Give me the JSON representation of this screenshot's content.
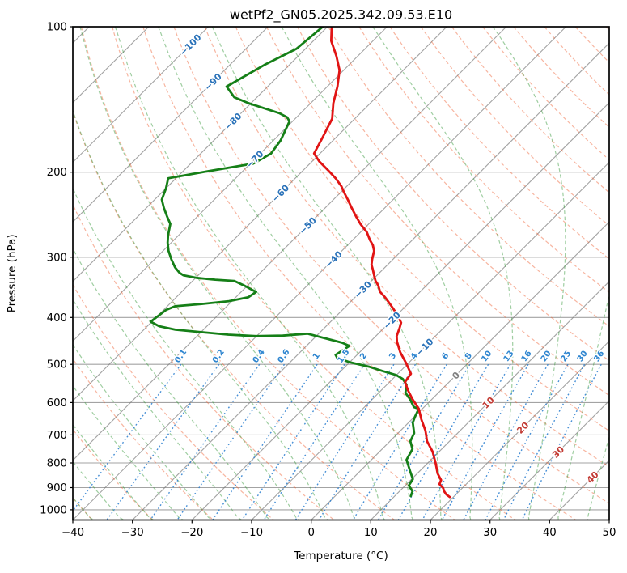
{
  "title": "wetPf2_GN05.2025.342.09.53.E10",
  "axes": {
    "x": {
      "label": "Temperature (°C)",
      "min": -40,
      "max": 50,
      "ticks": [
        {
          "v": -40,
          "label": "−40"
        },
        {
          "v": -30,
          "label": "−30"
        },
        {
          "v": -20,
          "label": "−20"
        },
        {
          "v": -10,
          "label": "−10"
        },
        {
          "v": 0,
          "label": "0"
        },
        {
          "v": 10,
          "label": "10"
        },
        {
          "v": 20,
          "label": "20"
        },
        {
          "v": 30,
          "label": "30"
        },
        {
          "v": 40,
          "label": "40"
        },
        {
          "v": 50,
          "label": "50"
        }
      ]
    },
    "y": {
      "label": "Pressure (hPa)",
      "ticks": [
        100,
        200,
        300,
        400,
        500,
        600,
        700,
        800,
        900,
        1000
      ]
    },
    "p": {
      "min": 100,
      "max": 1050
    }
  },
  "chart_data": {
    "type": "line",
    "chart_kind": "skew-t-log-p",
    "title": "wetPf2_GN05.2025.342.09.53.E10",
    "xlabel": "Temperature (°C)",
    "ylabel": "Pressure (hPa)",
    "xlim": [
      -40,
      50
    ],
    "plim": [
      100,
      1050
    ],
    "series": [
      {
        "name": "temperature",
        "color": "#e11414",
        "points": [
          [
            100,
            -79.3
          ],
          [
            107,
            -77.0
          ],
          [
            115,
            -73.6
          ],
          [
            123,
            -70.7
          ],
          [
            133,
            -68.3
          ],
          [
            144,
            -66.2
          ],
          [
            155,
            -63.8
          ],
          [
            170,
            -62.2
          ],
          [
            183,
            -61.0
          ],
          [
            190,
            -58.8
          ],
          [
            198,
            -55.9
          ],
          [
            206,
            -53.2
          ],
          [
            214,
            -50.9
          ],
          [
            220,
            -49.5
          ],
          [
            228,
            -47.6
          ],
          [
            237,
            -45.6
          ],
          [
            247,
            -43.4
          ],
          [
            256,
            -41.4
          ],
          [
            266,
            -39.0
          ],
          [
            277,
            -37.0
          ],
          [
            283,
            -35.8
          ],
          [
            291,
            -34.6
          ],
          [
            303,
            -33.5
          ],
          [
            311,
            -32.7
          ],
          [
            318,
            -31.7
          ],
          [
            327,
            -30.5
          ],
          [
            336,
            -29.3
          ],
          [
            344,
            -28.0
          ],
          [
            354,
            -26.7
          ],
          [
            363,
            -25.0
          ],
          [
            372,
            -23.5
          ],
          [
            382,
            -21.9
          ],
          [
            392,
            -20.4
          ],
          [
            400,
            -19.3
          ],
          [
            410,
            -18.0
          ],
          [
            420,
            -17.4
          ],
          [
            437,
            -16.5
          ],
          [
            449,
            -15.5
          ],
          [
            472,
            -13.2
          ],
          [
            497,
            -10.4
          ],
          [
            523,
            -7.8
          ],
          [
            544,
            -7.4
          ],
          [
            566,
            -5.5
          ],
          [
            589,
            -3.4
          ],
          [
            618,
            -0.6
          ],
          [
            650,
            1.6
          ],
          [
            686,
            4.2
          ],
          [
            721,
            6.2
          ],
          [
            758,
            8.9
          ],
          [
            800,
            11.3
          ],
          [
            841,
            13.4
          ],
          [
            868,
            15.1
          ],
          [
            885,
            15.5
          ],
          [
            902,
            16.8
          ],
          [
            916,
            17.5
          ],
          [
            930,
            18.4
          ],
          [
            941,
            19.4
          ]
        ]
      },
      {
        "name": "dewpoint",
        "color": "#157f17",
        "points": [
          [
            100,
            -80.8
          ],
          [
            111,
            -81.5
          ],
          [
            120,
            -84.2
          ],
          [
            128,
            -85.9
          ],
          [
            133,
            -86.9
          ],
          [
            140,
            -83.8
          ],
          [
            144,
            -80.4
          ],
          [
            148,
            -76.5
          ],
          [
            151,
            -73.6
          ],
          [
            154,
            -71.6
          ],
          [
            157,
            -70.5
          ],
          [
            163,
            -69.8
          ],
          [
            172,
            -68.8
          ],
          [
            183,
            -68.2
          ],
          [
            192,
            -69.5
          ],
          [
            200,
            -76.6
          ],
          [
            206,
            -81.3
          ],
          [
            216,
            -80.0
          ],
          [
            228,
            -78.8
          ],
          [
            237,
            -77.1
          ],
          [
            247,
            -75.1
          ],
          [
            256,
            -73.3
          ],
          [
            270,
            -71.8
          ],
          [
            280,
            -70.6
          ],
          [
            291,
            -69.1
          ],
          [
            303,
            -67.2
          ],
          [
            315,
            -65.2
          ],
          [
            323,
            -63.6
          ],
          [
            327,
            -62.5
          ],
          [
            331,
            -59.9
          ],
          [
            334,
            -56.4
          ],
          [
            336,
            -53.0
          ],
          [
            344,
            -50.4
          ],
          [
            351,
            -48.4
          ],
          [
            354,
            -47.5
          ],
          [
            363,
            -47.9
          ],
          [
            370,
            -50.5
          ],
          [
            375,
            -54.6
          ],
          [
            379,
            -58.7
          ],
          [
            386,
            -59.6
          ],
          [
            408,
            -60.2
          ],
          [
            417,
            -58.0
          ],
          [
            424,
            -54.7
          ],
          [
            429,
            -49.8
          ],
          [
            434,
            -45.0
          ],
          [
            437,
            -40.1
          ],
          [
            436,
            -35.7
          ],
          [
            432,
            -31.9
          ],
          [
            451,
            -24.6
          ],
          [
            458,
            -22.8
          ],
          [
            478,
            -23.6
          ],
          [
            485,
            -22.8
          ],
          [
            495,
            -20.0
          ],
          [
            506,
            -15.9
          ],
          [
            516,
            -13.1
          ],
          [
            526,
            -10.1
          ],
          [
            536,
            -8.3
          ],
          [
            551,
            -6.7
          ],
          [
            573,
            -5.5
          ],
          [
            589,
            -3.8
          ],
          [
            613,
            -1.7
          ],
          [
            618,
            -0.6
          ],
          [
            642,
            0.1
          ],
          [
            660,
            0.7
          ],
          [
            694,
            2.7
          ],
          [
            721,
            3.4
          ],
          [
            749,
            5.1
          ],
          [
            788,
            5.9
          ],
          [
            832,
            8.4
          ],
          [
            864,
            10.2
          ],
          [
            891,
            10.6
          ],
          [
            916,
            12.2
          ],
          [
            937,
            12.7
          ]
        ]
      }
    ],
    "background": {
      "isotherms": {
        "start": -120,
        "end": 50,
        "step": 10,
        "color": "#808080"
      },
      "dry_adiabats": {
        "start": -40,
        "end": 200,
        "step": 10,
        "color": "#ed6135"
      },
      "moist_adiabats": {
        "start": -40,
        "end": 45,
        "step": 5,
        "color": "#3f9e43"
      },
      "mixing_ratios": {
        "values": [
          0.1,
          0.2,
          0.4,
          0.6,
          1,
          1.5,
          2,
          3,
          4,
          6,
          8,
          10,
          13,
          16,
          20,
          25,
          30,
          36
        ],
        "labels": [
          "0.1",
          "0.2",
          "0.4",
          "0.6",
          "1",
          "1.5",
          "2",
          "3",
          "4",
          "6",
          "8",
          "10",
          "13",
          "16",
          "20",
          "25",
          "30",
          "36"
        ],
        "color": "#2c7fd0",
        "label_color": "#2f86d0",
        "label_pressure": 481,
        "line_top_pressure": 500
      },
      "isotherm_labels": {
        "items": [
          {
            "t": -100,
            "p": 109
          },
          {
            "t": -90,
            "p": 130
          },
          {
            "t": -80,
            "p": 157
          },
          {
            "t": -70,
            "p": 188
          },
          {
            "t": -60,
            "p": 221
          },
          {
            "t": -50,
            "p": 258
          },
          {
            "t": -40,
            "p": 303
          },
          {
            "t": -30,
            "p": 350
          },
          {
            "t": -20,
            "p": 405
          },
          {
            "t": -10,
            "p": 460
          },
          {
            "t": 0,
            "p": 527
          },
          {
            "t": 10,
            "p": 600
          },
          {
            "t": 20,
            "p": 676
          },
          {
            "t": 30,
            "p": 759
          },
          {
            "t": 40,
            "p": 856
          }
        ],
        "neg_color": "#2a72b9",
        "zero_color": "#808080",
        "pos_color": "#c23b34"
      }
    }
  }
}
